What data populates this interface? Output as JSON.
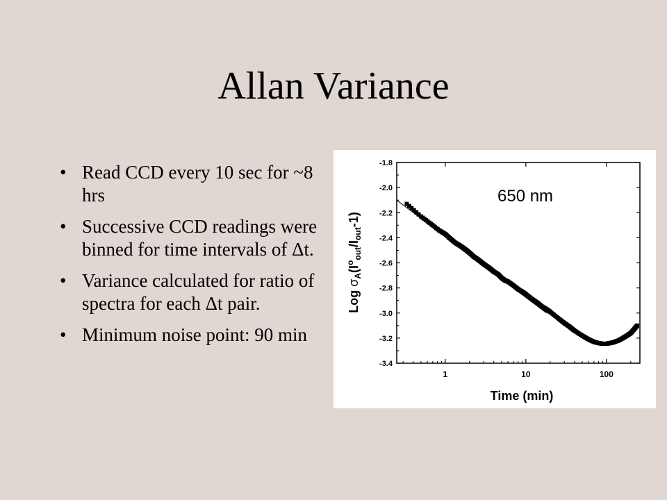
{
  "slide": {
    "title": "Allan Variance",
    "bullets": [
      "Read CCD every 10 sec for ~8 hrs",
      "Successive CCD readings were binned for time intervals of Δt.",
      "Variance calculated for ratio of spectra for each Δt pair.",
      "Minimum noise point: 90 min"
    ],
    "bullet_glyph": "•"
  },
  "chart_data": {
    "type": "scatter",
    "annotation": "650 nm",
    "xlabel": "Time (min)",
    "ylabel_parts": {
      "prefix": "Log ",
      "sigma": "σ",
      "sigma_sub": "A",
      "open": "(I",
      "sup_o": "o",
      "sub_out1": "out",
      "slash": "/I",
      "sub_out2": "out",
      "close": "-1)"
    },
    "x_scale": "log",
    "xlim": [
      0.25,
      260
    ],
    "ylim": [
      -3.4,
      -1.8
    ],
    "x_ticks": [
      {
        "value": 1,
        "label": "1"
      },
      {
        "value": 10,
        "label": "10"
      },
      {
        "value": 100,
        "label": "100"
      }
    ],
    "y_ticks": [
      {
        "value": -1.8,
        "label": "-1.8"
      },
      {
        "value": -2.0,
        "label": "-2.0"
      },
      {
        "value": -2.2,
        "label": "-2.2"
      },
      {
        "value": -2.4,
        "label": "-2.4"
      },
      {
        "value": -2.6,
        "label": "-2.6"
      },
      {
        "value": -2.8,
        "label": "-2.8"
      },
      {
        "value": -3.0,
        "label": "-3.0"
      },
      {
        "value": -3.2,
        "label": "-3.2"
      },
      {
        "value": -3.4,
        "label": "-3.4"
      }
    ],
    "fit_line": {
      "x": [
        0.25,
        18
      ],
      "y": [
        -2.1,
        -3.0
      ]
    },
    "series": [
      {
        "x": [
          0.333,
          0.5,
          0.667,
          0.833,
          1.0,
          1.167,
          1.333,
          1.5,
          1.667,
          1.833,
          2.0,
          2.25,
          2.5,
          2.75,
          3.0,
          3.33,
          3.67,
          4.0,
          4.5,
          5.0,
          5.5,
          6.0,
          7.0,
          8.0,
          9.0,
          10.0,
          12.0,
          14.0,
          16.0,
          18.0,
          20.0,
          25.0,
          30.0,
          35.0,
          40.0,
          50.0,
          60.0,
          70.0,
          80.0,
          90.0,
          100.0,
          110.0,
          120.0,
          140.0,
          160.0,
          180.0,
          200.0,
          220.0,
          240.0
        ],
        "y": [
          -2.13,
          -2.23,
          -2.29,
          -2.34,
          -2.37,
          -2.41,
          -2.44,
          -2.46,
          -2.48,
          -2.5,
          -2.52,
          -2.55,
          -2.57,
          -2.59,
          -2.61,
          -2.63,
          -2.65,
          -2.67,
          -2.69,
          -2.72,
          -2.74,
          -2.75,
          -2.78,
          -2.81,
          -2.83,
          -2.85,
          -2.89,
          -2.92,
          -2.95,
          -2.97,
          -2.99,
          -3.04,
          -3.08,
          -3.11,
          -3.14,
          -3.18,
          -3.21,
          -3.23,
          -3.24,
          -3.245,
          -3.245,
          -3.24,
          -3.235,
          -3.22,
          -3.2,
          -3.18,
          -3.16,
          -3.13,
          -3.1
        ]
      }
    ]
  }
}
